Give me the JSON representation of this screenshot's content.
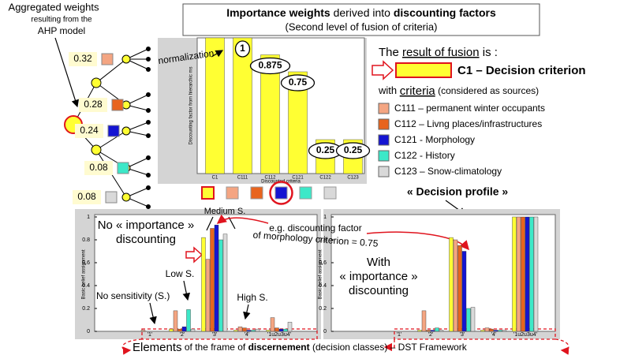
{
  "ahp": {
    "caption": [
      "Aggregated weights",
      "resulting from the",
      "AHP model"
    ],
    "weights": [
      {
        "value": 0.32,
        "color": "#f4a582"
      },
      {
        "value": 0.28,
        "color": "#e8641e"
      },
      {
        "value": 0.24,
        "color": "#1414d2"
      },
      {
        "value": 0.08,
        "color": "#3ce8c8"
      },
      {
        "value": 0.08,
        "color": "#d9d9d9"
      }
    ]
  },
  "header": {
    "title": [
      {
        "text": "Importance weights",
        "bold": true
      },
      {
        "text": " derived into ",
        "bold": false
      },
      {
        "text": "discounting factors",
        "bold": true
      }
    ],
    "subtitle": "(Second level of fusion of criteria)"
  },
  "discount_chart": {
    "type": "bar",
    "categories": [
      "C1",
      "C111",
      "C112",
      "C121",
      "C122",
      "C123"
    ],
    "values": [
      1,
      1,
      0.875,
      0.75,
      0.25,
      0.25
    ],
    "value_labels": [
      null,
      "1",
      "0.875",
      "0.75",
      "0.25",
      "0.25"
    ],
    "color": "#ffff33",
    "ylim": [
      0,
      1
    ],
    "ylabel": "Discounting factor from hierarchic ms",
    "xlabel": "Discounted criteria",
    "annotation": "normalization"
  },
  "fusion": {
    "lead": [
      "The ",
      "result of fusion",
      " is :"
    ],
    "decision": "C1 – Decision criterion",
    "criteria_intro": [
      "with ",
      "criteria",
      " (considered as sources)"
    ],
    "legend": [
      {
        "name": "C111 – permanent winter occupants",
        "color": "#f4a582"
      },
      {
        "name": "C112 – Livng places/infrastructures",
        "color": "#e8641e"
      },
      {
        "name": "C121 - Morphology",
        "color": "#1414d2"
      },
      {
        "name": "C122 - History",
        "color": "#3ce8c8"
      },
      {
        "name": "C123 – Snow-climatology",
        "color": "#d9d9d9"
      }
    ]
  },
  "profiles": [
    {
      "type": "bar",
      "categories": [
        "'1'",
        "'2'",
        "'3'",
        "'4'",
        "'1u2u3u4'"
      ],
      "ylim": [
        0,
        1
      ],
      "yticks": [
        0,
        0.2,
        0.4,
        0.6,
        0.8,
        1
      ],
      "ylabel": "Basic belief assignment",
      "series": [
        {
          "color": "#ffff33",
          "values": [
            0,
            0.02,
            0.82,
            0.01,
            0.01
          ]
        },
        {
          "color": "#f4a582",
          "values": [
            0.01,
            0.18,
            0.63,
            0.04,
            0.12
          ]
        },
        {
          "color": "#e8641e",
          "values": [
            0,
            0.02,
            0.9,
            0.03,
            0.03
          ]
        },
        {
          "color": "#1414d2",
          "values": [
            0,
            0.04,
            0.93,
            0.01,
            0.02
          ]
        },
        {
          "color": "#3ce8c8",
          "values": [
            0,
            0.19,
            0.8,
            0.01,
            0.02
          ]
        },
        {
          "color": "#d9d9d9",
          "values": [
            0,
            0.02,
            0.85,
            0.02,
            0.08
          ]
        }
      ]
    },
    {
      "type": "bar",
      "categories": [
        "'1'",
        "'2'",
        "'3'",
        "'4'",
        "'1u2u3u4'"
      ],
      "ylim": [
        0,
        1
      ],
      "yticks": [
        0,
        0.2,
        0.4,
        0.6,
        0.8,
        1
      ],
      "ylabel": "Basic belief assignment",
      "series": [
        {
          "color": "#ffff33",
          "values": [
            0,
            0.01,
            0.82,
            0.01,
            1
          ]
        },
        {
          "color": "#f4a582",
          "values": [
            0,
            0.18,
            0.8,
            0.03,
            1
          ]
        },
        {
          "color": "#e8641e",
          "values": [
            0,
            0.01,
            0.75,
            0.02,
            1
          ]
        },
        {
          "color": "#1414d2",
          "values": [
            0,
            0.01,
            0.7,
            0.01,
            1
          ]
        },
        {
          "color": "#3ce8c8",
          "values": [
            0,
            0.03,
            0.2,
            0.01,
            1
          ]
        },
        {
          "color": "#d9d9d9",
          "values": [
            0,
            0.01,
            0.21,
            0.01,
            1
          ]
        }
      ]
    }
  ],
  "annotations": {
    "no_discount": [
      "No « importance »",
      "discounting"
    ],
    "medium": "Medium S.",
    "low": "Low S.",
    "none": "No sensitivity (S.)",
    "high": "High S.",
    "example": [
      "e.g. discounting factor",
      "of morphology criterion = 0.75"
    ],
    "with_discount": [
      "With",
      "« importance »",
      "discounting"
    ],
    "profile": "« Decision profile »"
  },
  "footer": [
    {
      "text": "Elements",
      "bold": false,
      "large": true
    },
    {
      "text": " of the frame of ",
      "bold": false,
      "large": false
    },
    {
      "text": "discernement",
      "bold": true,
      "large": false
    },
    {
      "text": " (decision classes) –  DST Framework",
      "bold": false,
      "large": false
    }
  ]
}
